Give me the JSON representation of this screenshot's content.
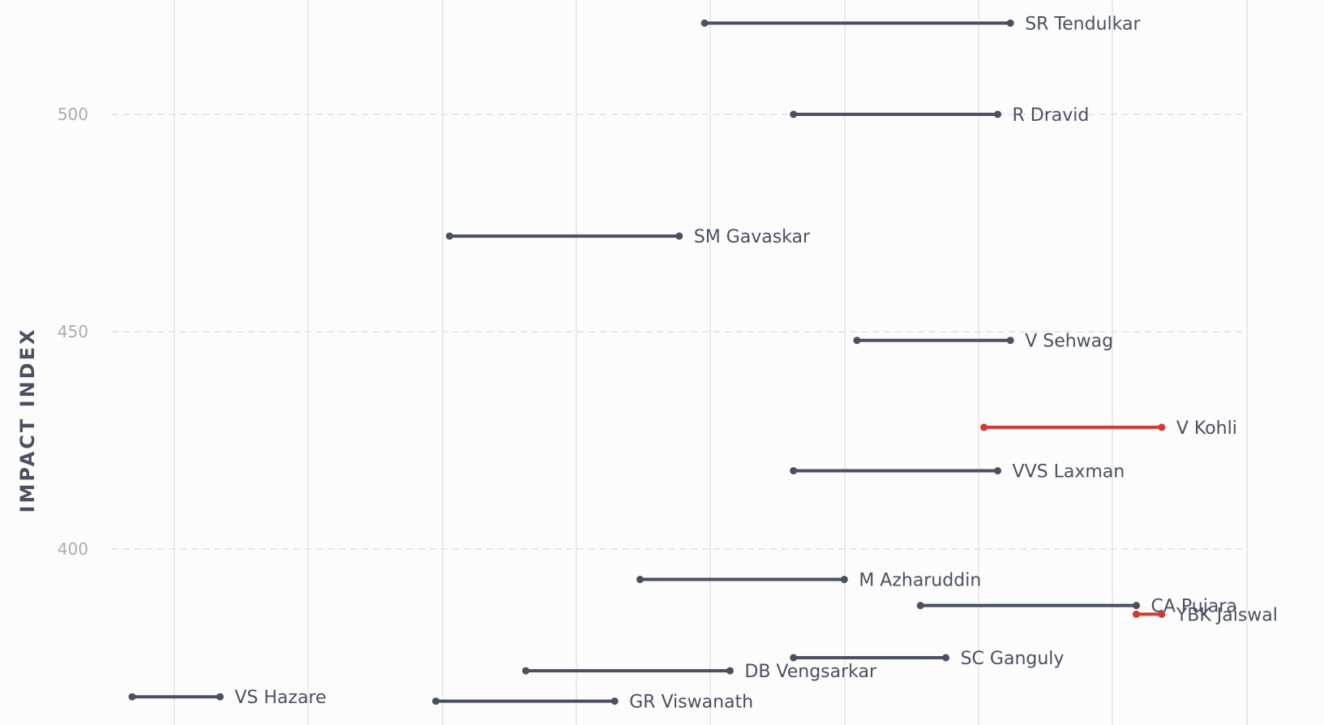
{
  "chart_data": {
    "type": "range",
    "ylabel": "IMPACT INDEX",
    "ylim": [
      365,
      527
    ],
    "yticks": [
      400,
      450,
      500
    ],
    "y_grid": true,
    "x_grid": true,
    "x_ticks_labeled": false,
    "colors": {
      "default": "#4a505e",
      "highlight": "#d33a32"
    },
    "players": [
      {
        "name": "SR Tendulkar",
        "start": 0.551,
        "end": 0.84,
        "y": 521,
        "highlight": false
      },
      {
        "name": "R Dravid",
        "start": 0.635,
        "end": 0.828,
        "y": 500,
        "highlight": false
      },
      {
        "name": "SM Gavaskar",
        "start": 0.31,
        "end": 0.527,
        "y": 472,
        "highlight": false
      },
      {
        "name": "V Sehwag",
        "start": 0.695,
        "end": 0.84,
        "y": 448,
        "highlight": false
      },
      {
        "name": "V Kohli",
        "start": 0.815,
        "end": 0.983,
        "y": 428,
        "highlight": true
      },
      {
        "name": "VVS Laxman",
        "start": 0.635,
        "end": 0.828,
        "y": 418,
        "highlight": false
      },
      {
        "name": "M Azharuddin",
        "start": 0.49,
        "end": 0.683,
        "y": 393,
        "highlight": false
      },
      {
        "name": "CA Pujara",
        "start": 0.755,
        "end": 0.959,
        "y": 387,
        "highlight": false
      },
      {
        "name": "YBK Jaiswal",
        "start": 0.959,
        "end": 0.983,
        "y": 385,
        "highlight": true
      },
      {
        "name": "SC Ganguly",
        "start": 0.635,
        "end": 0.779,
        "y": 375,
        "highlight": false
      },
      {
        "name": "DB Vengsarkar",
        "start": 0.382,
        "end": 0.575,
        "y": 372,
        "highlight": false
      },
      {
        "name": "VS Hazare",
        "start": 0.01,
        "end": 0.093,
        "y": 366,
        "highlight": false
      },
      {
        "name": "GR Viswanath",
        "start": 0.297,
        "end": 0.466,
        "y": 365,
        "highlight": false
      }
    ]
  }
}
